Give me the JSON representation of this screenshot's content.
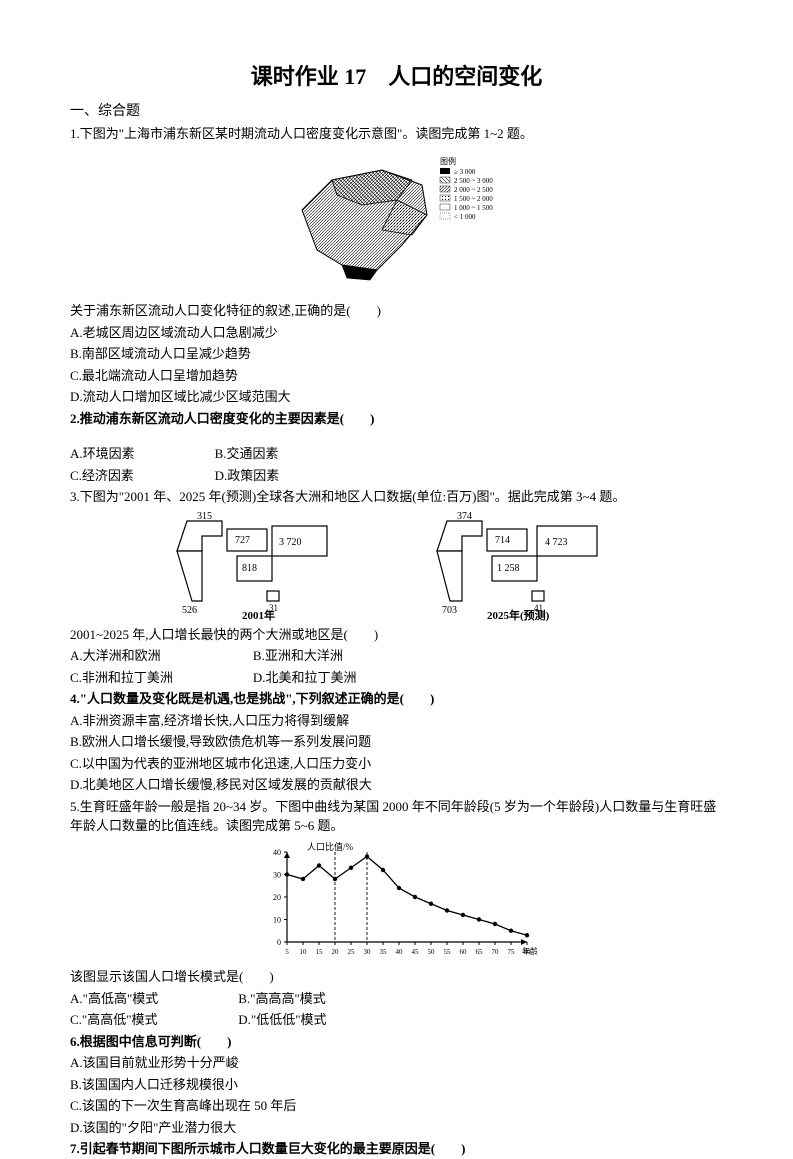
{
  "title": "课时作业 17　人口的空间变化",
  "section1": "一、综合题",
  "q1": {
    "stem": "1.下图为\"上海市浦东新区某时期流动人口密度变化示意图\"。读图完成第 1~2 题。",
    "legend_title": "图例",
    "legend": [
      "≥ 3 000",
      "2 500 ~ 3 000",
      "2 000 ~ 2 500",
      "1 500 ~ 2 000",
      "1 000 ~ 1 500",
      "< 1 000"
    ],
    "sub": "关于浦东新区流动人口变化特征的叙述,正确的是(　　)",
    "A": "A.老城区周边区域流动人口急剧减少",
    "B": "B.南部区域流动人口呈减少趋势",
    "C": "C.最北端流动人口呈增加趋势",
    "D": "D.流动人口增加区域比减少区域范围大"
  },
  "q2": {
    "stem": "2.推动浦东新区流动人口密度变化的主要因素是(　　)",
    "A": "A.环境因素",
    "B": "B.交通因素",
    "C": "C.经济因素",
    "D": "D.政策因素"
  },
  "q3": {
    "stem": "3.下图为\"2001 年、2025 年(预测)全球各大洲和地区人口数据(单位:百万)图\"。据此完成第 3~4 题。",
    "chart2001": {
      "year_label": "2001年",
      "values": {
        "top_left": "315",
        "left_bar": "526",
        "top_right_in": "727",
        "center_right": "818",
        "right_box": "3 720",
        "bottom_small": "31"
      },
      "colors": {
        "outline": "#000000",
        "fill_light": "#ffffff"
      }
    },
    "chart2025": {
      "year_label": "2025年(预测)",
      "values": {
        "top_left": "374",
        "left_bar": "703",
        "top_right_in": "714",
        "center_right": "1 258",
        "right_box": "4 723",
        "bottom_small": "41"
      },
      "colors": {
        "outline": "#000000",
        "fill_light": "#ffffff"
      }
    },
    "sub": "2001~2025 年,人口增长最快的两个大洲或地区是(　　)",
    "A": "A.大洋洲和欧洲",
    "B": "B.亚洲和大洋洲",
    "C": "C.非洲和拉丁美洲",
    "D": "D.北美和拉丁美洲"
  },
  "q4": {
    "stem": "4.\"人口数量及变化既是机遇,也是挑战\",下列叙述正确的是(　　)",
    "A": "A.非洲资源丰富,经济增长快,人口压力将得到缓解",
    "B": "B.欧洲人口增长缓慢,导致欧债危机等一系列发展问题",
    "C": "C.以中国为代表的亚洲地区城市化迅速,人口压力变小",
    "D": "D.北美地区人口增长缓慢,移民对区域发展的贡献很大"
  },
  "q5": {
    "stem": "5.生育旺盛年龄一般是指 20~34 岁。下图中曲线为某国 2000 年不同年龄段(5 岁为一个年龄段)人口数量与生育旺盛年龄人口数量的比值连线。读图完成第 5~6 题。",
    "chart": {
      "y_label": "人口比值/%",
      "x_label": "年龄/岁",
      "y_ticks": [
        0,
        10,
        20,
        30,
        40
      ],
      "x_ticks": [
        5,
        10,
        15,
        20,
        25,
        30,
        35,
        40,
        45,
        50,
        55,
        60,
        65,
        70,
        75,
        80
      ],
      "series": [
        {
          "x": 5,
          "y": 30
        },
        {
          "x": 10,
          "y": 28
        },
        {
          "x": 15,
          "y": 34
        },
        {
          "x": 20,
          "y": 28
        },
        {
          "x": 25,
          "y": 33
        },
        {
          "x": 30,
          "y": 38
        },
        {
          "x": 35,
          "y": 32
        },
        {
          "x": 40,
          "y": 24
        },
        {
          "x": 45,
          "y": 20
        },
        {
          "x": 50,
          "y": 17
        },
        {
          "x": 55,
          "y": 14
        },
        {
          "x": 60,
          "y": 12
        },
        {
          "x": 65,
          "y": 10
        },
        {
          "x": 70,
          "y": 8
        },
        {
          "x": 75,
          "y": 5
        },
        {
          "x": 80,
          "y": 3
        }
      ],
      "dashed_x": [
        20,
        30
      ],
      "colors": {
        "line": "#000000",
        "grid": "#000000",
        "bg": "#ffffff"
      }
    },
    "sub": "该图显示该国人口增长模式是(　　)",
    "A": "A.\"高低高\"模式",
    "B": "B.\"高高高\"模式",
    "C": "C.\"高高低\"模式",
    "D": "D.\"低低低\"模式"
  },
  "q6": {
    "stem": "6.根据图中信息可判断(　　)",
    "A": "A.该国目前就业形势十分严峻",
    "B": "B.该国国内人口迁移规模很小",
    "C": "C.该国的下一次生育高峰出现在 50 年后",
    "D": "D.该国的\"夕阳\"产业潜力很大"
  },
  "q7": {
    "stem": "7.引起春节期间下图所示城市人口数量巨大变化的最主要原因是(　　)"
  }
}
